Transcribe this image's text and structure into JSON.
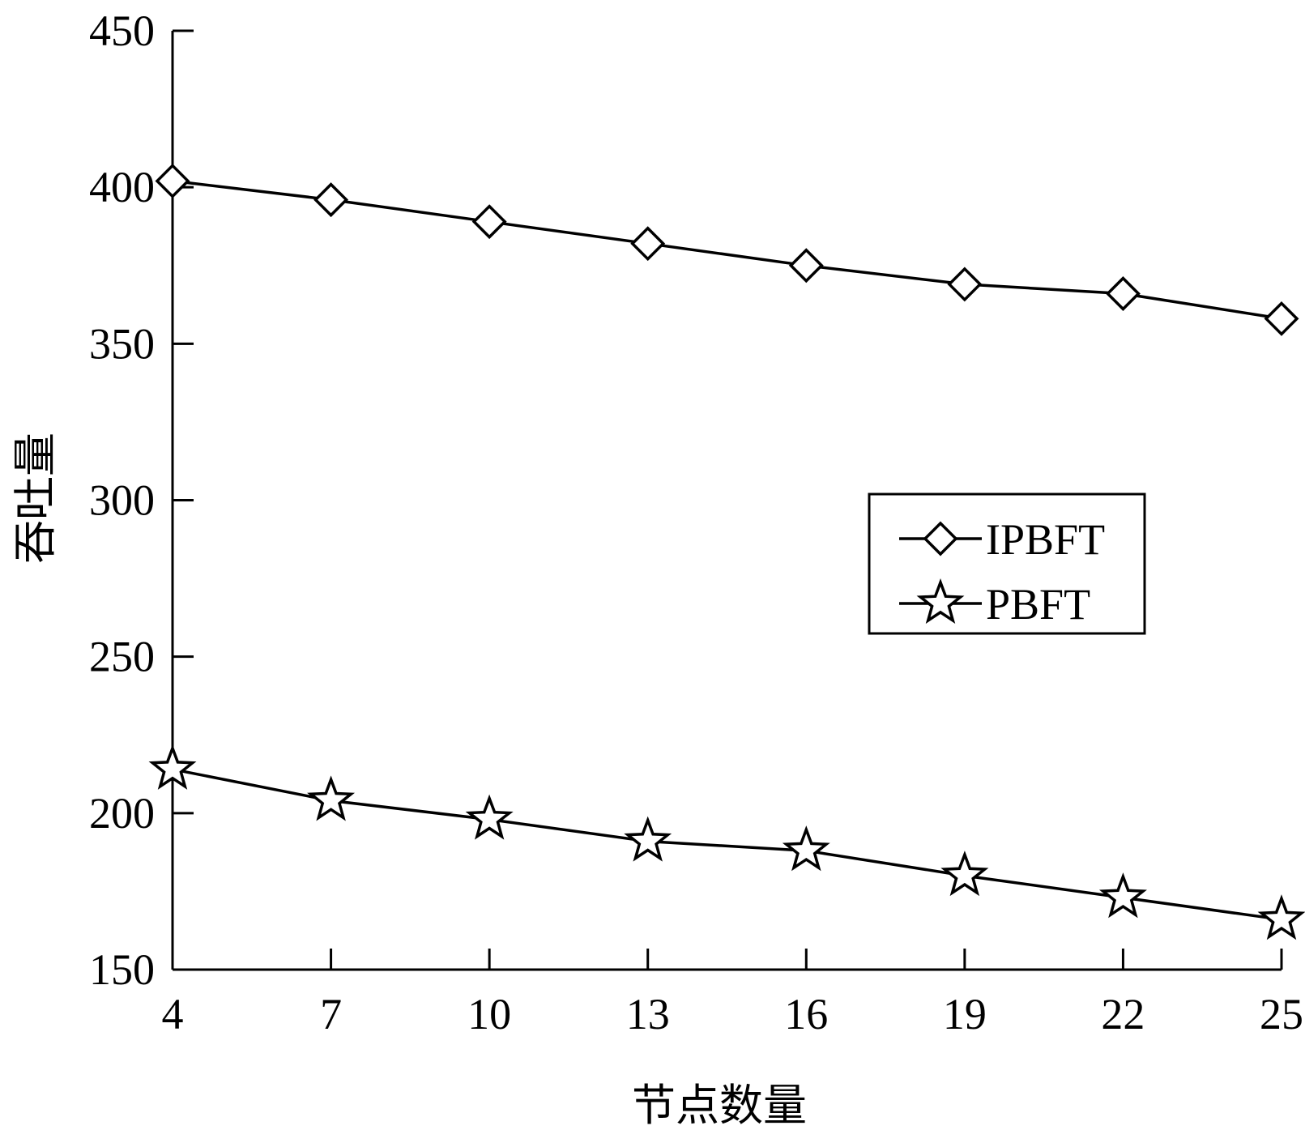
{
  "chart_data": {
    "type": "line",
    "title": "",
    "xlabel": "节点数量",
    "ylabel": "吞吐量",
    "x": [
      4,
      7,
      10,
      13,
      16,
      19,
      22,
      25
    ],
    "xticks": [
      "4",
      "7",
      "10",
      "13",
      "16",
      "19",
      "22",
      "25"
    ],
    "xlim": [
      4,
      25
    ],
    "yticks": [
      "150",
      "200",
      "250",
      "300",
      "350",
      "400",
      "450"
    ],
    "ylim": [
      150,
      450
    ],
    "grid": false,
    "legend_position": "right-middle",
    "series": [
      {
        "name": "IPBFT",
        "marker": "diamond",
        "values": [
          402,
          396,
          389,
          382,
          375,
          369,
          366,
          358
        ]
      },
      {
        "name": "PBFT",
        "marker": "star",
        "values": [
          214,
          204,
          198,
          191,
          188,
          180,
          173,
          166
        ]
      }
    ],
    "colors": {
      "line": "#000000",
      "background": "#ffffff"
    }
  }
}
